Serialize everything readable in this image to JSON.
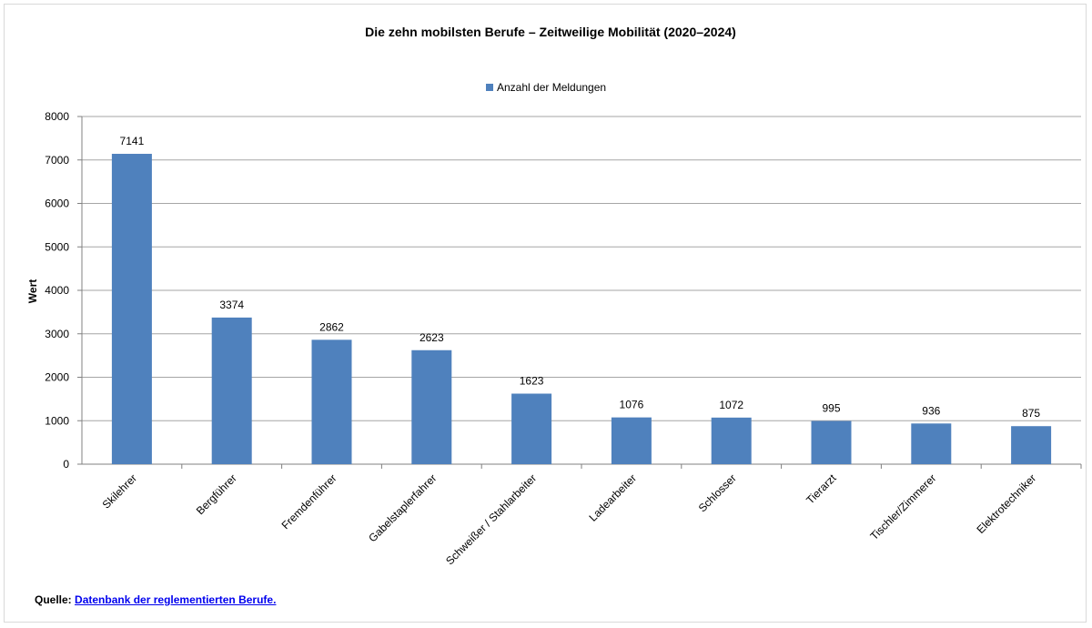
{
  "colors": {
    "bar": "#4f81bd",
    "grid": "#a6a6a6",
    "axis": "#808080",
    "frame": "#d9d9d9"
  },
  "chart_data": {
    "type": "bar",
    "title": "Die zehn mobilsten Berufe – Zeitweilige Mobilität (2020–2024)",
    "xlabel": "",
    "ylabel": "Wert",
    "ylim": [
      0,
      8000
    ],
    "yticks": [
      0,
      1000,
      2000,
      3000,
      4000,
      5000,
      6000,
      7000,
      8000
    ],
    "grid": true,
    "legend_position": "top-center",
    "categories": [
      "Skilehrer",
      "Bergführer",
      "Fremdenführer",
      "Gabelstaplerfahrer",
      "Schweißer / Stahlarbeiter",
      "Ladearbeiter",
      "Schlosser",
      "Tierarzt",
      "Tischler/Zimmerer",
      "Elektrotechniker"
    ],
    "series": [
      {
        "name": "Anzahl der Meldungen",
        "values": [
          7141,
          3374,
          2862,
          2623,
          1623,
          1076,
          1072,
          995,
          936,
          875
        ]
      }
    ]
  },
  "source": {
    "label": "Quelle:",
    "link_text": "Datenbank der reglementierten Berufe."
  }
}
